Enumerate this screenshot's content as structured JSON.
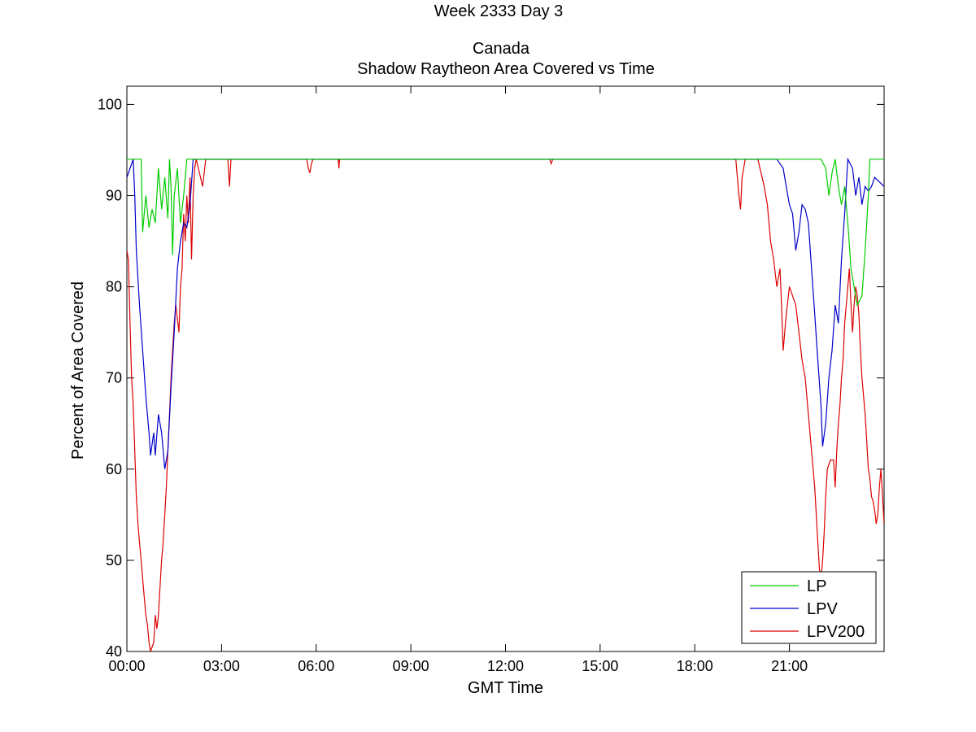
{
  "chart_data": {
    "type": "line",
    "title_lines": [
      "Week 2333 Day 3",
      "Canada",
      "Shadow Raytheon Area Covered vs Time"
    ],
    "xlabel": "GMT Time",
    "ylabel": "Percent of Area Covered",
    "xlim": [
      0,
      24
    ],
    "ylim": [
      40,
      102
    ],
    "x_unit": "hours",
    "x_ticks": [
      0,
      3,
      6,
      9,
      12,
      15,
      18,
      21
    ],
    "x_tick_labels": [
      "00:00",
      "03:00",
      "06:00",
      "09:00",
      "12:00",
      "15:00",
      "18:00",
      "21:00"
    ],
    "y_ticks": [
      40,
      50,
      60,
      70,
      80,
      90,
      100
    ],
    "y_tick_labels": [
      "40",
      "50",
      "60",
      "70",
      "80",
      "90",
      "100"
    ],
    "grid": false,
    "legend_position": "bottom-right",
    "series": [
      {
        "name": "LP",
        "color": "#00cc00",
        "points": [
          [
            0,
            94
          ],
          [
            0.45,
            94
          ],
          [
            0.5,
            86
          ],
          [
            0.6,
            90
          ],
          [
            0.7,
            86.5
          ],
          [
            0.8,
            88.5
          ],
          [
            0.9,
            87
          ],
          [
            1.0,
            93
          ],
          [
            1.1,
            88.5
          ],
          [
            1.2,
            92
          ],
          [
            1.3,
            87.5
          ],
          [
            1.35,
            94
          ],
          [
            1.4,
            91
          ],
          [
            1.45,
            83.5
          ],
          [
            1.5,
            90
          ],
          [
            1.6,
            93
          ],
          [
            1.7,
            87
          ],
          [
            1.8,
            90
          ],
          [
            1.9,
            94
          ],
          [
            22.0,
            94
          ],
          [
            22.15,
            93
          ],
          [
            22.25,
            90
          ],
          [
            22.35,
            92.5
          ],
          [
            22.45,
            94
          ],
          [
            22.55,
            91
          ],
          [
            22.65,
            89
          ],
          [
            22.75,
            91
          ],
          [
            22.85,
            87
          ],
          [
            22.95,
            82
          ],
          [
            23.05,
            80
          ],
          [
            23.15,
            78
          ],
          [
            23.3,
            79
          ],
          [
            23.4,
            84
          ],
          [
            23.5,
            90
          ],
          [
            23.55,
            94
          ],
          [
            24,
            94
          ]
        ]
      },
      {
        "name": "LPV",
        "color": "#0000cc",
        "points": [
          [
            0,
            92
          ],
          [
            0.1,
            93
          ],
          [
            0.2,
            94
          ],
          [
            0.25,
            90
          ],
          [
            0.3,
            84
          ],
          [
            0.4,
            78
          ],
          [
            0.5,
            73
          ],
          [
            0.6,
            68
          ],
          [
            0.7,
            64
          ],
          [
            0.75,
            61.5
          ],
          [
            0.85,
            64
          ],
          [
            0.9,
            61.5
          ],
          [
            1.0,
            66
          ],
          [
            1.1,
            64
          ],
          [
            1.2,
            60
          ],
          [
            1.3,
            62
          ],
          [
            1.4,
            69
          ],
          [
            1.5,
            75
          ],
          [
            1.6,
            82
          ],
          [
            1.7,
            85
          ],
          [
            1.8,
            87
          ],
          [
            1.9,
            86.5
          ],
          [
            2.0,
            89
          ],
          [
            2.1,
            94
          ],
          [
            20.6,
            94
          ],
          [
            20.8,
            93
          ],
          [
            20.9,
            91
          ],
          [
            21.0,
            89
          ],
          [
            21.1,
            88
          ],
          [
            21.2,
            84
          ],
          [
            21.3,
            86
          ],
          [
            21.4,
            89
          ],
          [
            21.5,
            88.5
          ],
          [
            21.6,
            87
          ],
          [
            21.7,
            82
          ],
          [
            21.8,
            77
          ],
          [
            21.9,
            72
          ],
          [
            22.0,
            67
          ],
          [
            22.05,
            62.5
          ],
          [
            22.15,
            65
          ],
          [
            22.25,
            70
          ],
          [
            22.35,
            73
          ],
          [
            22.45,
            78
          ],
          [
            22.55,
            76
          ],
          [
            22.65,
            83
          ],
          [
            22.75,
            88
          ],
          [
            22.85,
            94
          ],
          [
            23.0,
            93
          ],
          [
            23.1,
            90
          ],
          [
            23.2,
            92
          ],
          [
            23.3,
            89
          ],
          [
            23.4,
            91
          ],
          [
            23.5,
            90.5
          ],
          [
            23.6,
            91
          ],
          [
            23.7,
            92
          ],
          [
            24,
            91
          ]
        ]
      },
      {
        "name": "LPV200",
        "color": "#dd0000",
        "points": [
          [
            0,
            84
          ],
          [
            0.05,
            83
          ],
          [
            0.1,
            76
          ],
          [
            0.15,
            70
          ],
          [
            0.2,
            67
          ],
          [
            0.25,
            62
          ],
          [
            0.3,
            57
          ],
          [
            0.35,
            54
          ],
          [
            0.4,
            52
          ],
          [
            0.45,
            50
          ],
          [
            0.5,
            48
          ],
          [
            0.55,
            46
          ],
          [
            0.6,
            44
          ],
          [
            0.65,
            43
          ],
          [
            0.7,
            41
          ],
          [
            0.75,
            40
          ],
          [
            0.85,
            41
          ],
          [
            0.9,
            44
          ],
          [
            0.95,
            42.5
          ],
          [
            1.0,
            44
          ],
          [
            1.05,
            47
          ],
          [
            1.1,
            50
          ],
          [
            1.15,
            52
          ],
          [
            1.2,
            55
          ],
          [
            1.25,
            58
          ],
          [
            1.3,
            62
          ],
          [
            1.35,
            66
          ],
          [
            1.4,
            70
          ],
          [
            1.45,
            73
          ],
          [
            1.5,
            76
          ],
          [
            1.55,
            78
          ],
          [
            1.6,
            76.5
          ],
          [
            1.65,
            75
          ],
          [
            1.7,
            80
          ],
          [
            1.75,
            82
          ],
          [
            1.8,
            88
          ],
          [
            1.85,
            85
          ],
          [
            1.9,
            90
          ],
          [
            1.95,
            87
          ],
          [
            2.0,
            92
          ],
          [
            2.05,
            83
          ],
          [
            2.1,
            90
          ],
          [
            2.15,
            93
          ],
          [
            2.2,
            94
          ],
          [
            2.4,
            91
          ],
          [
            2.5,
            94
          ],
          [
            3.2,
            94
          ],
          [
            3.25,
            91
          ],
          [
            3.3,
            94
          ],
          [
            5.7,
            94
          ],
          [
            5.75,
            93
          ],
          [
            5.8,
            92.5
          ],
          [
            5.85,
            93.5
          ],
          [
            5.9,
            94
          ],
          [
            6.7,
            94
          ],
          [
            6.72,
            93
          ],
          [
            6.74,
            94
          ],
          [
            13.4,
            94
          ],
          [
            13.45,
            93.5
          ],
          [
            13.5,
            94
          ],
          [
            19.3,
            94
          ],
          [
            19.35,
            92
          ],
          [
            19.4,
            90
          ],
          [
            19.45,
            88.5
          ],
          [
            19.5,
            92
          ],
          [
            19.6,
            94
          ],
          [
            20.0,
            94
          ],
          [
            20.1,
            92.5
          ],
          [
            20.2,
            91
          ],
          [
            20.3,
            89
          ],
          [
            20.4,
            85
          ],
          [
            20.5,
            83
          ],
          [
            20.6,
            80
          ],
          [
            20.7,
            82
          ],
          [
            20.75,
            78
          ],
          [
            20.8,
            73
          ],
          [
            20.85,
            75
          ],
          [
            20.9,
            77
          ],
          [
            21.0,
            80
          ],
          [
            21.1,
            79
          ],
          [
            21.2,
            78
          ],
          [
            21.3,
            75
          ],
          [
            21.4,
            72
          ],
          [
            21.5,
            70
          ],
          [
            21.6,
            66
          ],
          [
            21.7,
            62
          ],
          [
            21.8,
            58
          ],
          [
            21.85,
            55
          ],
          [
            21.9,
            52
          ],
          [
            21.95,
            49
          ],
          [
            22.0,
            48
          ],
          [
            22.05,
            50
          ],
          [
            22.1,
            53
          ],
          [
            22.15,
            57
          ],
          [
            22.2,
            60
          ],
          [
            22.3,
            61
          ],
          [
            22.4,
            61
          ],
          [
            22.45,
            58
          ],
          [
            22.5,
            62
          ],
          [
            22.55,
            65
          ],
          [
            22.6,
            67
          ],
          [
            22.65,
            70
          ],
          [
            22.7,
            72
          ],
          [
            22.75,
            76
          ],
          [
            22.8,
            78
          ],
          [
            22.85,
            80
          ],
          [
            22.9,
            82
          ],
          [
            22.95,
            78
          ],
          [
            23.0,
            75
          ],
          [
            23.05,
            78
          ],
          [
            23.1,
            80
          ],
          [
            23.15,
            79
          ],
          [
            23.2,
            77
          ],
          [
            23.25,
            73
          ],
          [
            23.3,
            70
          ],
          [
            23.4,
            66
          ],
          [
            23.45,
            63
          ],
          [
            23.5,
            60
          ],
          [
            23.55,
            59
          ],
          [
            23.6,
            57
          ],
          [
            23.65,
            56.5
          ],
          [
            23.7,
            55.5
          ],
          [
            23.75,
            54
          ],
          [
            23.8,
            55
          ],
          [
            23.85,
            58
          ],
          [
            23.9,
            60
          ],
          [
            23.95,
            57
          ],
          [
            24,
            54
          ]
        ]
      }
    ]
  }
}
